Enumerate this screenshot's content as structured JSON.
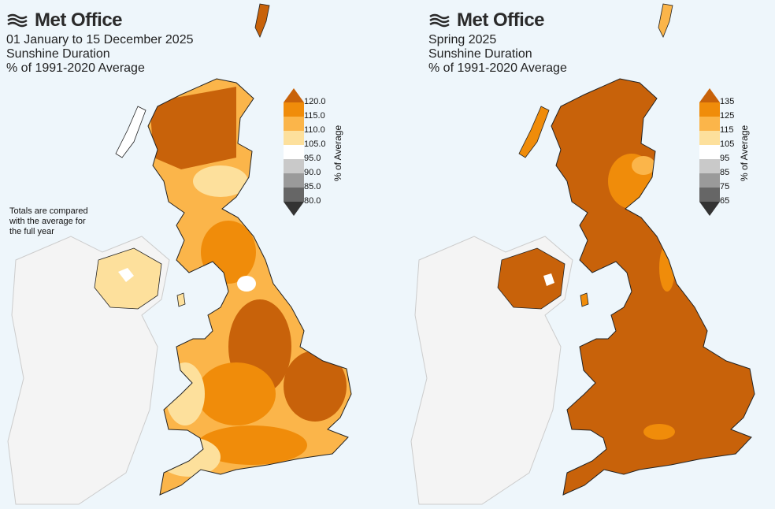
{
  "panels": [
    {
      "logo": "Met Office",
      "lines": [
        "01 January to 15 December 2025",
        "Sunshine Duration",
        "% of 1991-2020 Average"
      ],
      "note": "Totals are compared with the average for the full year",
      "colorbar": {
        "title": "% of Average",
        "labels": [
          "120.0",
          "115.0",
          "110.0",
          "105.0",
          "95.0",
          "90.0",
          "85.0",
          "80.0"
        ]
      }
    },
    {
      "logo": "Met Office",
      "lines": [
        "Spring 2025",
        "Sunshine Duration",
        "% of 1991-2020 Average"
      ],
      "colorbar": {
        "title": "% of Average",
        "labels": [
          "135",
          "125",
          "115",
          "105",
          "95",
          "85",
          "75",
          "65"
        ]
      }
    }
  ],
  "colors": {
    "top": "#c8620a",
    "band1": "#f08c0a",
    "band2": "#fbb54a",
    "band3": "#fde09c",
    "neutral": "#ffffff",
    "g1": "#c9c9c9",
    "g2": "#9a9a9a",
    "g3": "#666666",
    "bottom": "#333333",
    "ireland": "#f4f4f4",
    "sea": "#eef6fb"
  }
}
